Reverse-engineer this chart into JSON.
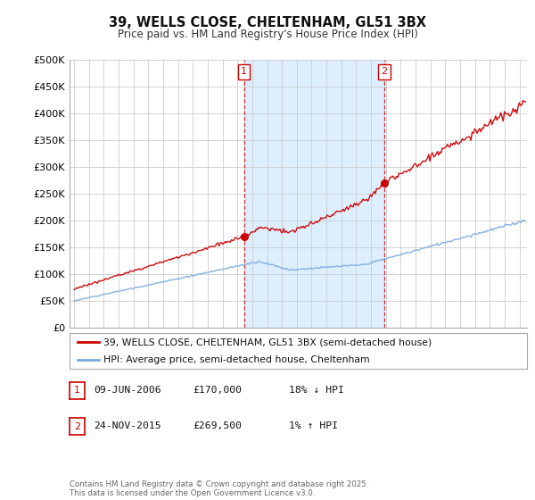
{
  "title": "39, WELLS CLOSE, CHELTENHAM, GL51 3BX",
  "subtitle": "Price paid vs. HM Land Registry's House Price Index (HPI)",
  "ylabel_ticks": [
    "£0",
    "£50K",
    "£100K",
    "£150K",
    "£200K",
    "£250K",
    "£300K",
    "£350K",
    "£400K",
    "£450K",
    "£500K"
  ],
  "ytick_vals": [
    0,
    50000,
    100000,
    150000,
    200000,
    250000,
    300000,
    350000,
    400000,
    450000,
    500000
  ],
  "ylim": [
    0,
    500000
  ],
  "xlim_start": 1994.7,
  "xlim_end": 2025.5,
  "sale1_x": 2006.44,
  "sale1_price": 170000,
  "sale2_x": 2015.9,
  "sale2_price": 269500,
  "line_color_red": "#cc0000",
  "line_color_blue": "#7aaadd",
  "shade_color": "#ddeeff",
  "vline_color": "#cc0000",
  "legend_label_red": "39, WELLS CLOSE, CHELTENHAM, GL51 3BX (semi-detached house)",
  "legend_label_blue": "HPI: Average price, semi-detached house, Cheltenham",
  "table_rows": [
    {
      "num": "1",
      "date": "09-JUN-2006",
      "price": "£170,000",
      "pct": "18% ↓ HPI"
    },
    {
      "num": "2",
      "date": "24-NOV-2015",
      "price": "£269,500",
      "pct": "1% ↑ HPI"
    }
  ],
  "copyright_text": "Contains HM Land Registry data © Crown copyright and database right 2025.\nThis data is licensed under the Open Government Licence v3.0.",
  "background_color": "#ffffff",
  "grid_color": "#cccccc"
}
